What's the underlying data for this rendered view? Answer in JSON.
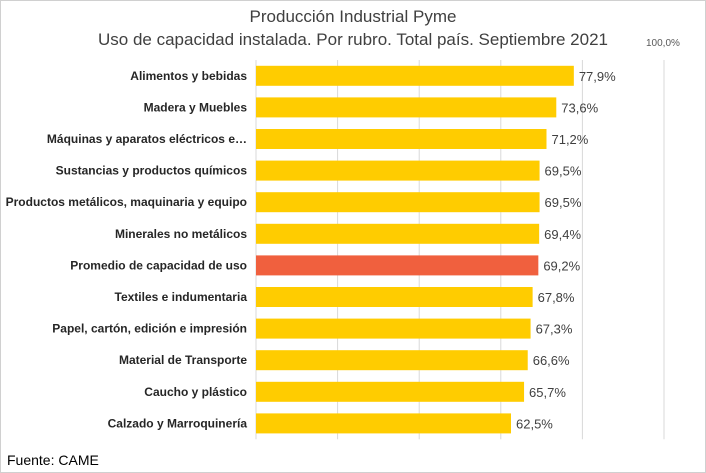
{
  "chart_data": {
    "type": "bar",
    "orientation": "horizontal",
    "title": "Producción Industrial Pyme",
    "subtitle": "Uso de capacidad instalada. Por rubro. Total país. Septiembre 2021",
    "max_label": "100,0%",
    "xlim": [
      0,
      100
    ],
    "grid": true,
    "categories": [
      "Alimentos y bebidas",
      "Madera y Muebles",
      "Máquinas y aparatos eléctricos e…",
      "Sustancias y productos químicos",
      "Productos metálicos, maquinaria y equipo",
      "Minerales no metálicos",
      "Promedio de capacidad de uso",
      "Textiles e indumentaria",
      "Papel, cartón, edición e impresión",
      "Material de Transporte",
      "Caucho y plástico",
      "Calzado y Marroquinería"
    ],
    "values": [
      77.9,
      73.6,
      71.2,
      69.5,
      69.5,
      69.4,
      69.2,
      67.8,
      67.3,
      66.6,
      65.7,
      62.5
    ],
    "labels": [
      "77,9%",
      "73,6%",
      "71,2%",
      "69,5%",
      "69,5%",
      "69,4%",
      "69,2%",
      "67,8%",
      "67,3%",
      "66,6%",
      "65,7%",
      "62,5%"
    ],
    "highlight_index": 6,
    "bar_color": "#FFCC00",
    "highlight_color": "#F0603E"
  },
  "source": "Fuente: CAME"
}
